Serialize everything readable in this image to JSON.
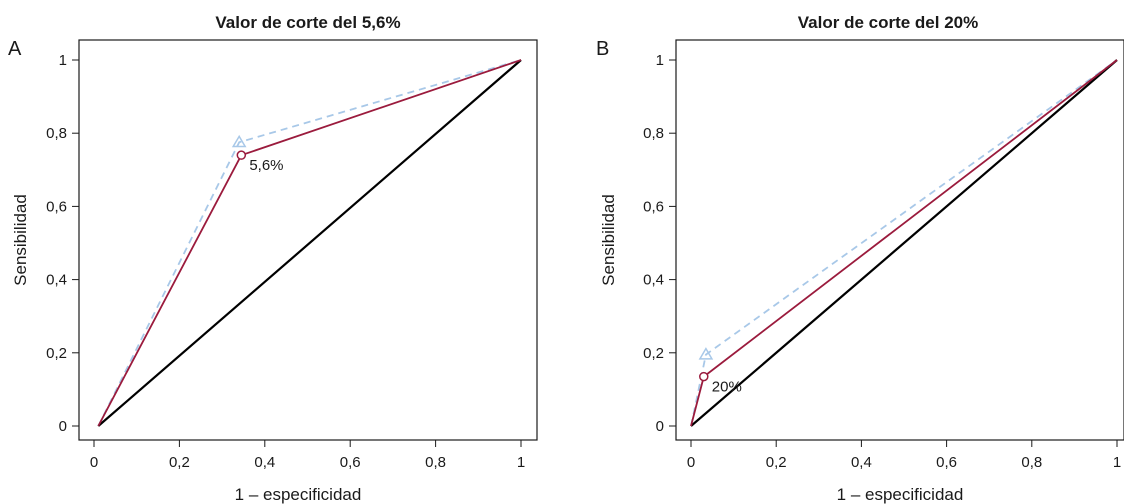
{
  "chart_data": [
    {
      "type": "line",
      "panel": "A",
      "title": "Valor de corte del 5,6%",
      "xlabel": "1 – especificidad",
      "ylabel": "Sensibilidad",
      "xlim": [
        0,
        1
      ],
      "ylim": [
        0,
        1
      ],
      "xticks": [
        0,
        0.2,
        0.4,
        0.6,
        0.8,
        1
      ],
      "xtick_labels": [
        "0",
        "0,2",
        "0,4",
        "0,6",
        "0,8",
        "1"
      ],
      "yticks": [
        0,
        0.2,
        0.4,
        0.6,
        0.8,
        1
      ],
      "ytick_labels": [
        "0",
        "0,2",
        "0,4",
        "0,6",
        "0,8",
        "1"
      ],
      "grid": false,
      "series": [
        {
          "style": "solid",
          "color": "#000000",
          "x": [
            0.01,
            1
          ],
          "y": [
            0,
            1
          ]
        },
        {
          "style": "solid",
          "color": "#9b1b3d",
          "marker": "circle",
          "x": [
            0.01,
            0.345,
            1
          ],
          "y": [
            0,
            0.74,
            1
          ]
        },
        {
          "style": "dashed",
          "color": "#a8c8e8",
          "marker": "triangle",
          "x": [
            0.01,
            0.34,
            1
          ],
          "y": [
            0,
            0.775,
            1
          ]
        }
      ],
      "annotation": {
        "text": "5,6%",
        "x": 0.345,
        "y": 0.74
      }
    },
    {
      "type": "line",
      "panel": "B",
      "title": "Valor de corte del 20%",
      "xlabel": "1 – especificidad",
      "ylabel": "Sensibilidad",
      "xlim": [
        0,
        1
      ],
      "ylim": [
        0,
        1
      ],
      "xticks": [
        0,
        0.2,
        0.4,
        0.6,
        0.8,
        1
      ],
      "xtick_labels": [
        "0",
        "0,2",
        "0,4",
        "0,6",
        "0,8",
        "1"
      ],
      "yticks": [
        0,
        0.2,
        0.4,
        0.6,
        0.8,
        1
      ],
      "ytick_labels": [
        "0",
        "0,2",
        "0,4",
        "0,6",
        "0,8",
        "1"
      ],
      "grid": false,
      "series": [
        {
          "style": "solid",
          "color": "#000000",
          "x": [
            0,
            1
          ],
          "y": [
            0,
            1
          ]
        },
        {
          "style": "solid",
          "color": "#9b1b3d",
          "marker": "circle",
          "x": [
            0,
            0.03,
            1
          ],
          "y": [
            0,
            0.135,
            1
          ]
        },
        {
          "style": "dashed",
          "color": "#a8c8e8",
          "marker": "triangle",
          "x": [
            0,
            0.035,
            1
          ],
          "y": [
            0,
            0.195,
            1
          ]
        }
      ],
      "annotation": {
        "text": "20%",
        "x": 0.03,
        "y": 0.135
      }
    }
  ]
}
